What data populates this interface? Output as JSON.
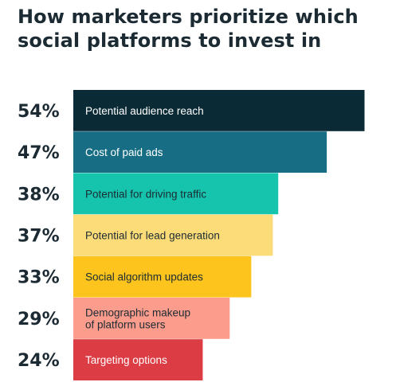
{
  "chart_data": {
    "type": "bar",
    "orientation": "horizontal",
    "title": "How marketers prioritize which social platforms to invest in",
    "categories": [
      "Potential audience reach",
      "Cost of paid ads",
      "Potential for driving traffic",
      "Potential for lead generation",
      "Social algorithm updates",
      "Demographic makeup of platform users",
      "Targeting options"
    ],
    "value_labels": [
      "54%",
      "47%",
      "38%",
      "37%",
      "33%",
      "29%",
      "24%"
    ],
    "values": [
      54,
      47,
      38,
      37,
      33,
      29,
      24
    ],
    "unit": "%",
    "bar_colors": [
      "#0a2b36",
      "#176e84",
      "#16c4ad",
      "#fcdc78",
      "#fcc41c",
      "#fc9c8c",
      "#dc3c44"
    ],
    "label_colors": [
      "#ffffff",
      "#ffffff",
      "#1c2b33",
      "#1c2b33",
      "#1c2b33",
      "#1c2b33",
      "#ffffff"
    ],
    "grid": false,
    "legend": "none"
  }
}
